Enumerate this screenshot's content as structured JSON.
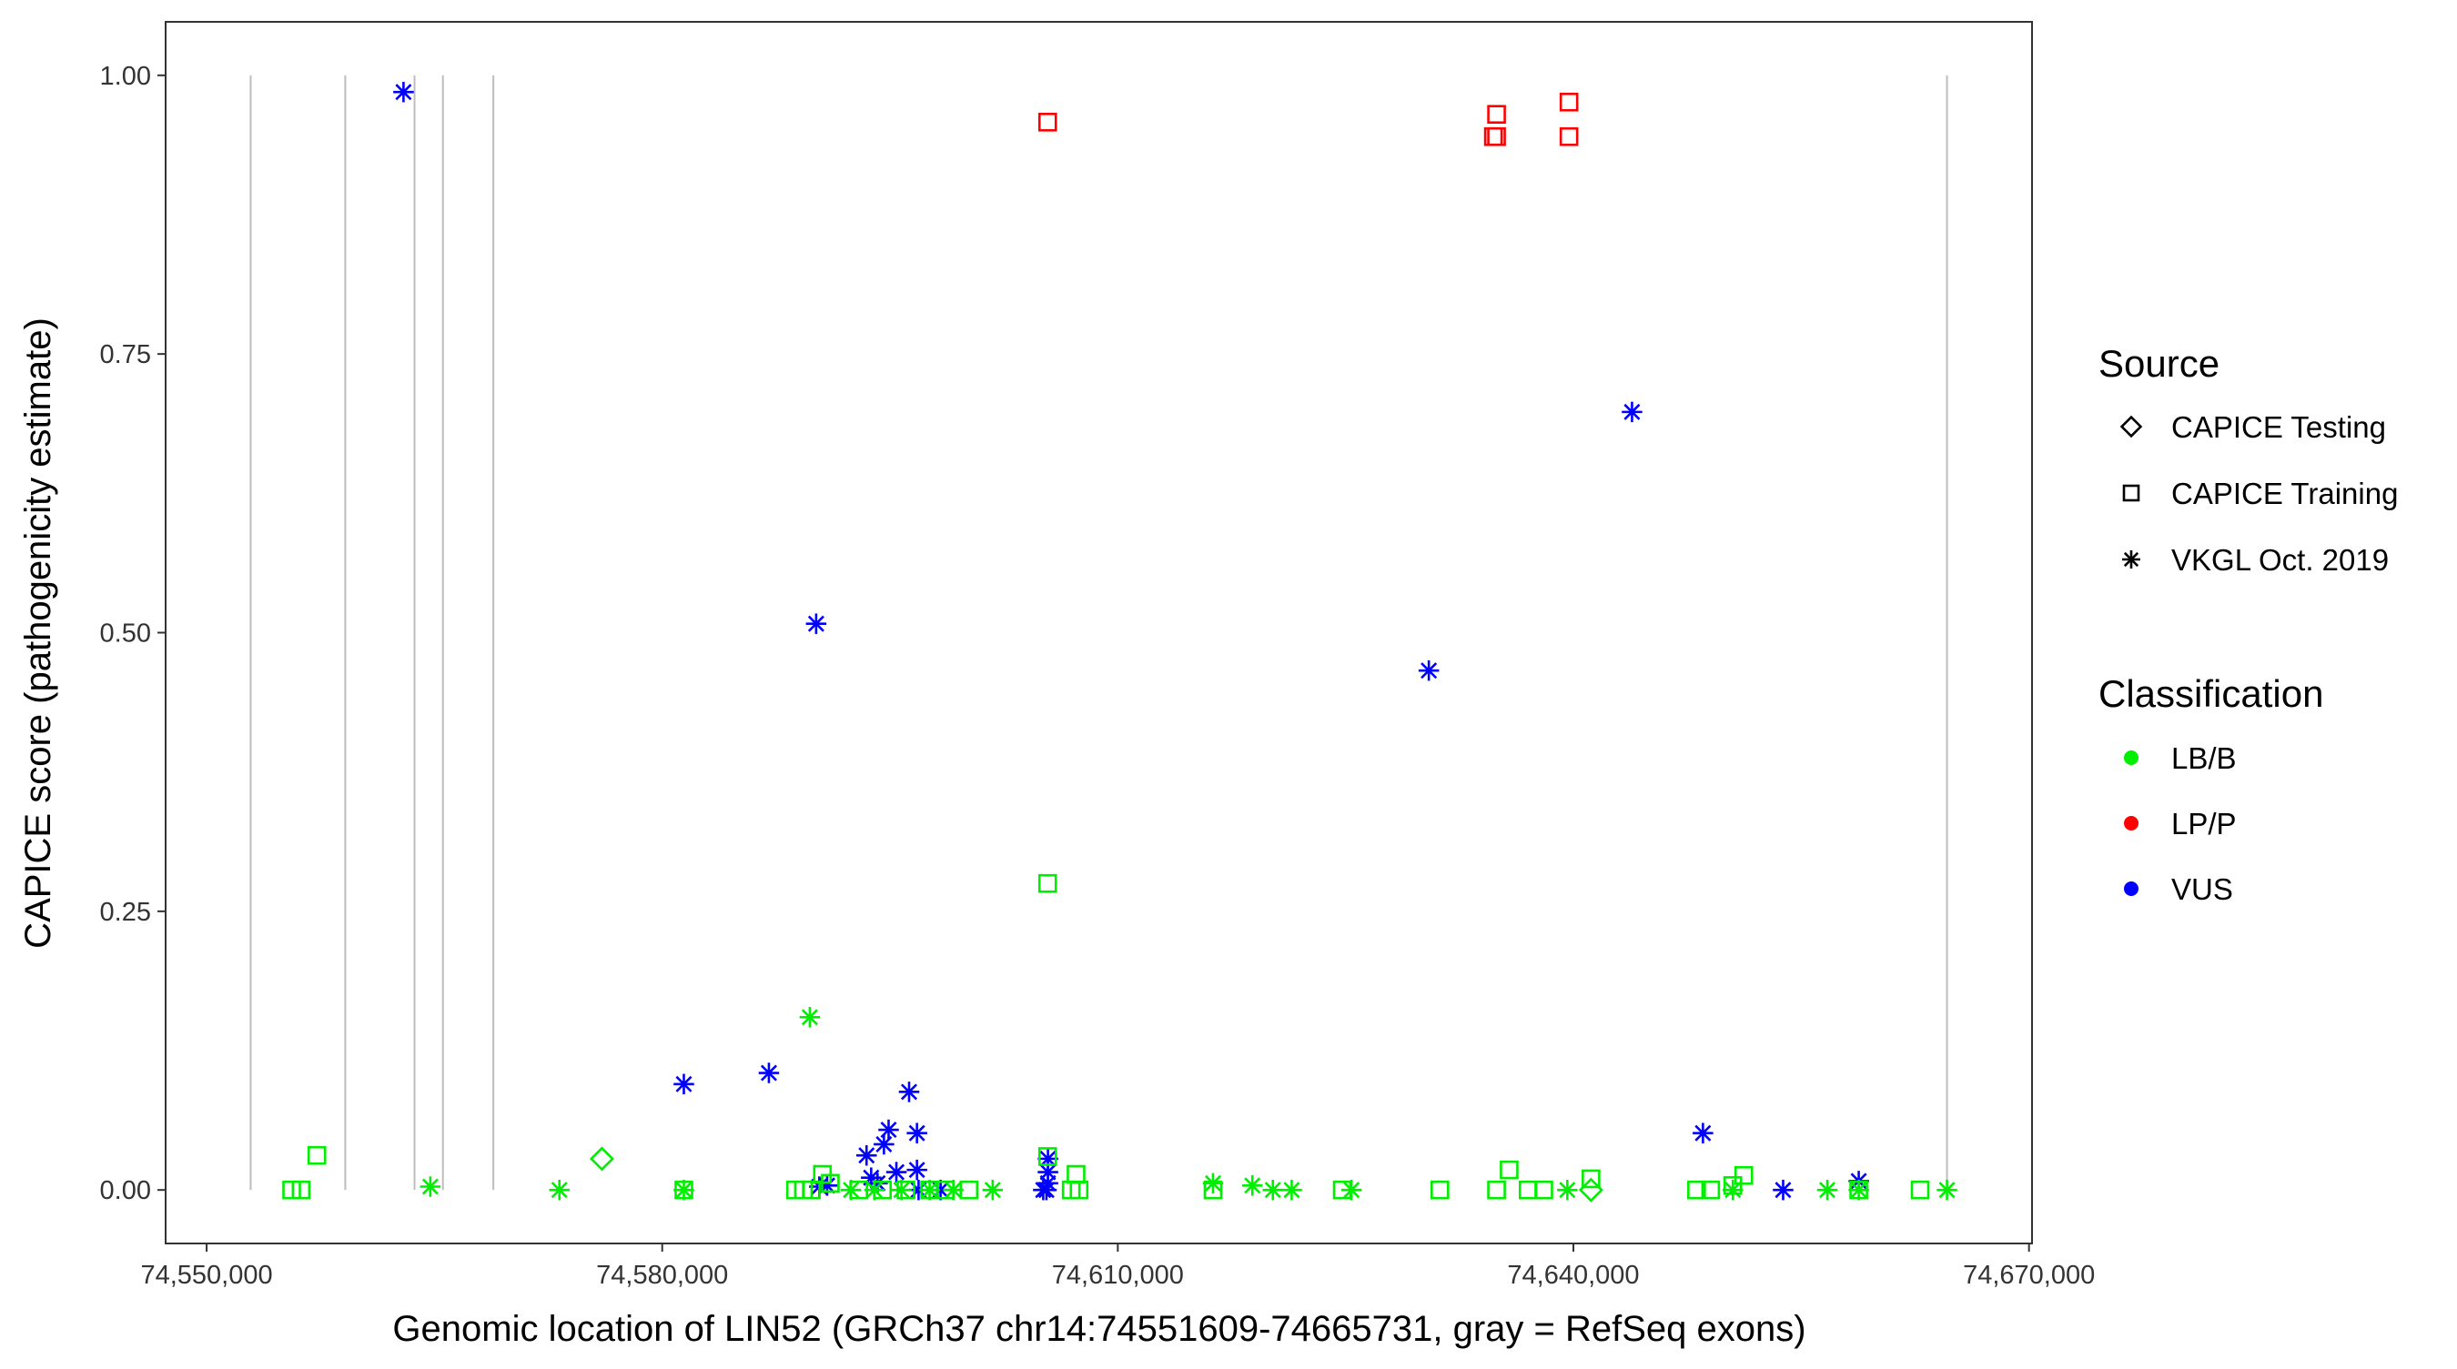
{
  "chart_data": {
    "type": "scatter",
    "xlabel": "Genomic location of LIN52 (GRCh37 chr14:74551609-74665731, gray = RefSeq exons)",
    "ylabel": "CAPICE score (pathogenicity estimate)",
    "xlim": [
      74547300,
      74670200
    ],
    "ylim": [
      -0.048,
      1.048
    ],
    "x_ticks": [
      74550000,
      74580000,
      74610000,
      74640000,
      74670000
    ],
    "x_tick_labels": [
      "74,550,000",
      "74,580,000",
      "74,610,000",
      "74,640,000",
      "74,670,000"
    ],
    "y_ticks": [
      0,
      0.25,
      0.5,
      0.75,
      1.0
    ],
    "y_tick_labels": [
      "0.00",
      "0.25",
      "0.50",
      "0.75",
      "1.00"
    ],
    "grid": false,
    "exon_lines": [
      74552900,
      74559130,
      74563690,
      74565560,
      74568880,
      74664600
    ],
    "legend": {
      "placement": "right",
      "source_title": "Source",
      "source_items": [
        {
          "label": "CAPICE Testing",
          "shape": "diamond"
        },
        {
          "label": "CAPICE Training",
          "shape": "square"
        },
        {
          "label": "VKGL Oct. 2019",
          "shape": "asterisk"
        }
      ],
      "class_title": "Classification",
      "class_items": [
        {
          "label": "LB/B",
          "color": "#00ee00"
        },
        {
          "label": "LP/P",
          "color": "#ff0000"
        },
        {
          "label": "VUS",
          "color": "#0000ff"
        }
      ]
    },
    "series": [
      {
        "source": "VKGL Oct. 2019",
        "classification": "VUS",
        "shape": "asterisk",
        "color": "#0000ff",
        "points": [
          [
            74562964,
            0.985
          ],
          [
            74590137,
            0.508
          ],
          [
            74630480,
            0.466
          ],
          [
            74643860,
            0.698
          ],
          [
            74581425,
            0.095
          ],
          [
            74587025,
            0.105
          ],
          [
            74596256,
            0.088
          ],
          [
            74596775,
            0.051
          ],
          [
            74594908,
            0.054
          ],
          [
            74594600,
            0.041
          ],
          [
            74593455,
            0.031
          ],
          [
            74595420,
            0.016
          ],
          [
            74596775,
            0.018
          ],
          [
            74593760,
            0.011
          ],
          [
            74590344,
            0.003
          ],
          [
            74590860,
            0.004
          ],
          [
            74594180,
            0.006
          ],
          [
            74596880,
            0
          ],
          [
            74598330,
            0
          ],
          [
            74605400,
            0.028
          ],
          [
            74605400,
            0.016
          ],
          [
            74605400,
            0.006
          ],
          [
            74605300,
            0
          ],
          [
            74605090,
            0
          ],
          [
            74648530,
            0.051
          ],
          [
            74653810,
            0
          ],
          [
            74658790,
            0.008
          ]
        ]
      },
      {
        "source": "VKGL Oct. 2019",
        "classification": "LB/B",
        "shape": "asterisk",
        "color": "#00ee00",
        "points": [
          [
            74589720,
            0.155
          ],
          [
            74564730,
            0.003
          ],
          [
            74573230,
            0
          ],
          [
            74581425,
            0
          ],
          [
            74592430,
            0
          ],
          [
            74593980,
            0
          ],
          [
            74595750,
            0
          ],
          [
            74597610,
            0
          ],
          [
            74599170,
            0
          ],
          [
            74601760,
            0
          ],
          [
            74616270,
            0.006
          ],
          [
            74618860,
            0.004
          ],
          [
            74620210,
            0
          ],
          [
            74621450,
            0
          ],
          [
            74625390,
            0
          ],
          [
            74639600,
            0
          ],
          [
            74650500,
            0
          ],
          [
            74656720,
            0
          ],
          [
            74658790,
            0
          ],
          [
            74664600,
            0
          ]
        ]
      },
      {
        "source": "CAPICE Training",
        "classification": "LB/B",
        "shape": "square",
        "color": "#00ee00",
        "points": [
          [
            74555600,
            0
          ],
          [
            74556220,
            0
          ],
          [
            74557260,
            0.031
          ],
          [
            74581425,
            0
          ],
          [
            74588780,
            0
          ],
          [
            74589300,
            0
          ],
          [
            74589820,
            0
          ],
          [
            74590550,
            0.014
          ],
          [
            74591070,
            0.006
          ],
          [
            74592940,
            0
          ],
          [
            74594500,
            0
          ],
          [
            74596050,
            0
          ],
          [
            74597610,
            0
          ],
          [
            74598640,
            0
          ],
          [
            74600200,
            0
          ],
          [
            74605380,
            0.275
          ],
          [
            74605380,
            0.03
          ],
          [
            74607250,
            0.014
          ],
          [
            74607450,
            0
          ],
          [
            74606930,
            0
          ],
          [
            74616270,
            0
          ],
          [
            74624780,
            0
          ],
          [
            74631210,
            0
          ],
          [
            74634940,
            0
          ],
          [
            74635770,
            0.018
          ],
          [
            74637020,
            0
          ],
          [
            74638050,
            0
          ],
          [
            74641160,
            0.01
          ],
          [
            74648110,
            0
          ],
          [
            74649040,
            0
          ],
          [
            74650500,
            0.004
          ],
          [
            74651220,
            0.013
          ],
          [
            74658790,
            0
          ],
          [
            74662830,
            0
          ]
        ]
      },
      {
        "source": "CAPICE Training",
        "classification": "LP/P",
        "shape": "square",
        "color": "#ff0000",
        "points": [
          [
            74605380,
            0.958
          ],
          [
            74634940,
            0.965
          ],
          [
            74634940,
            0.945
          ],
          [
            74634730,
            0.945
          ],
          [
            74639710,
            0.976
          ],
          [
            74639710,
            0.945
          ]
        ]
      },
      {
        "source": "CAPICE Testing",
        "classification": "LB/B",
        "shape": "diamond",
        "color": "#00ee00",
        "points": [
          [
            74576030,
            0.028
          ],
          [
            74641160,
            0
          ]
        ]
      }
    ]
  }
}
